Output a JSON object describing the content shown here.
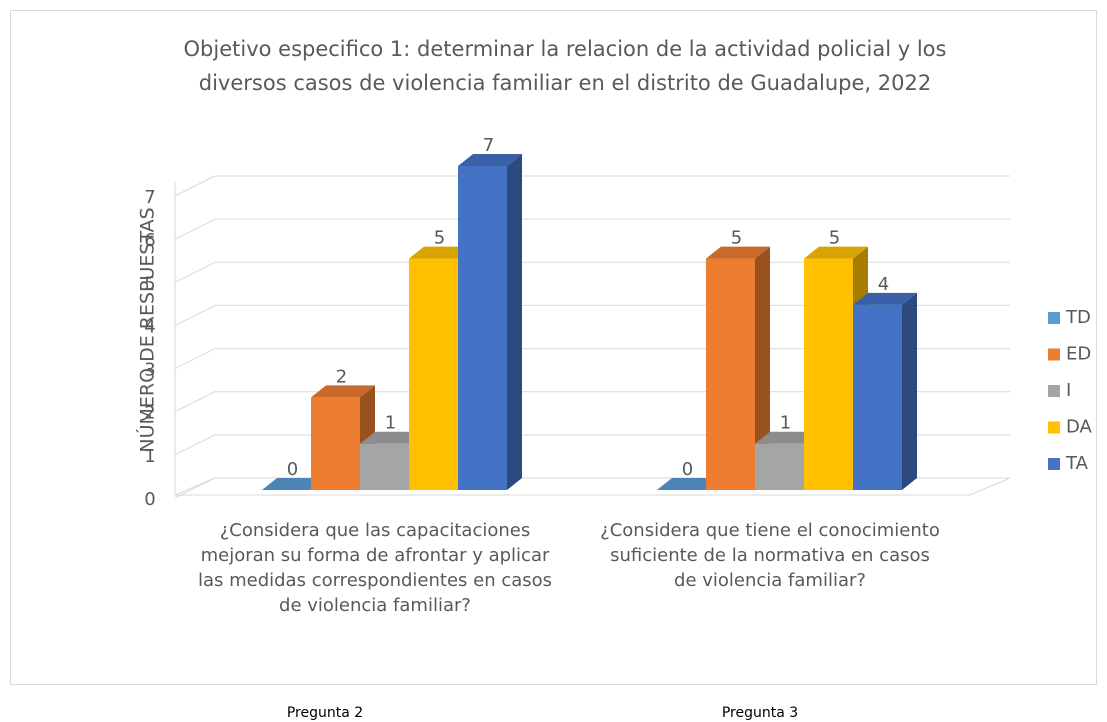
{
  "chart_data": {
    "type": "bar3d",
    "title": [
      "Objetivo especifico 1: determinar la relacion de la actividad policial y los",
      "diversos casos de violencia familiar en el distrito de Guadalupe, 2022"
    ],
    "y_label": "NÚMERO DE RESPUESTAS",
    "categories": [
      "¿Considera que las capacitaciones mejoran su forma de afrontar y aplicar las medidas correspondientes en casos de violencia familiar?",
      "¿Considera que tiene el conocimiento suficiente de la normativa en casos de violencia familiar?"
    ],
    "series": [
      {
        "name": "TD",
        "color": "#5b9bd5",
        "values": [
          0,
          0
        ]
      },
      {
        "name": "ED",
        "color": "#ed7d31",
        "values": [
          2,
          5
        ]
      },
      {
        "name": "I",
        "color": "#a5a5a5",
        "values": [
          1,
          1
        ]
      },
      {
        "name": "DA",
        "color": "#ffc000",
        "values": [
          5,
          5
        ]
      },
      {
        "name": "TA",
        "color": "#4472c4",
        "values": [
          7,
          4
        ]
      }
    ],
    "ylim": [
      0,
      7
    ],
    "yticks": [
      0,
      1,
      2,
      3,
      4,
      5,
      6,
      7
    ],
    "grid": true,
    "legend": "right",
    "footer_labels": [
      "Pregunta 2",
      "Pregunta 3"
    ]
  }
}
